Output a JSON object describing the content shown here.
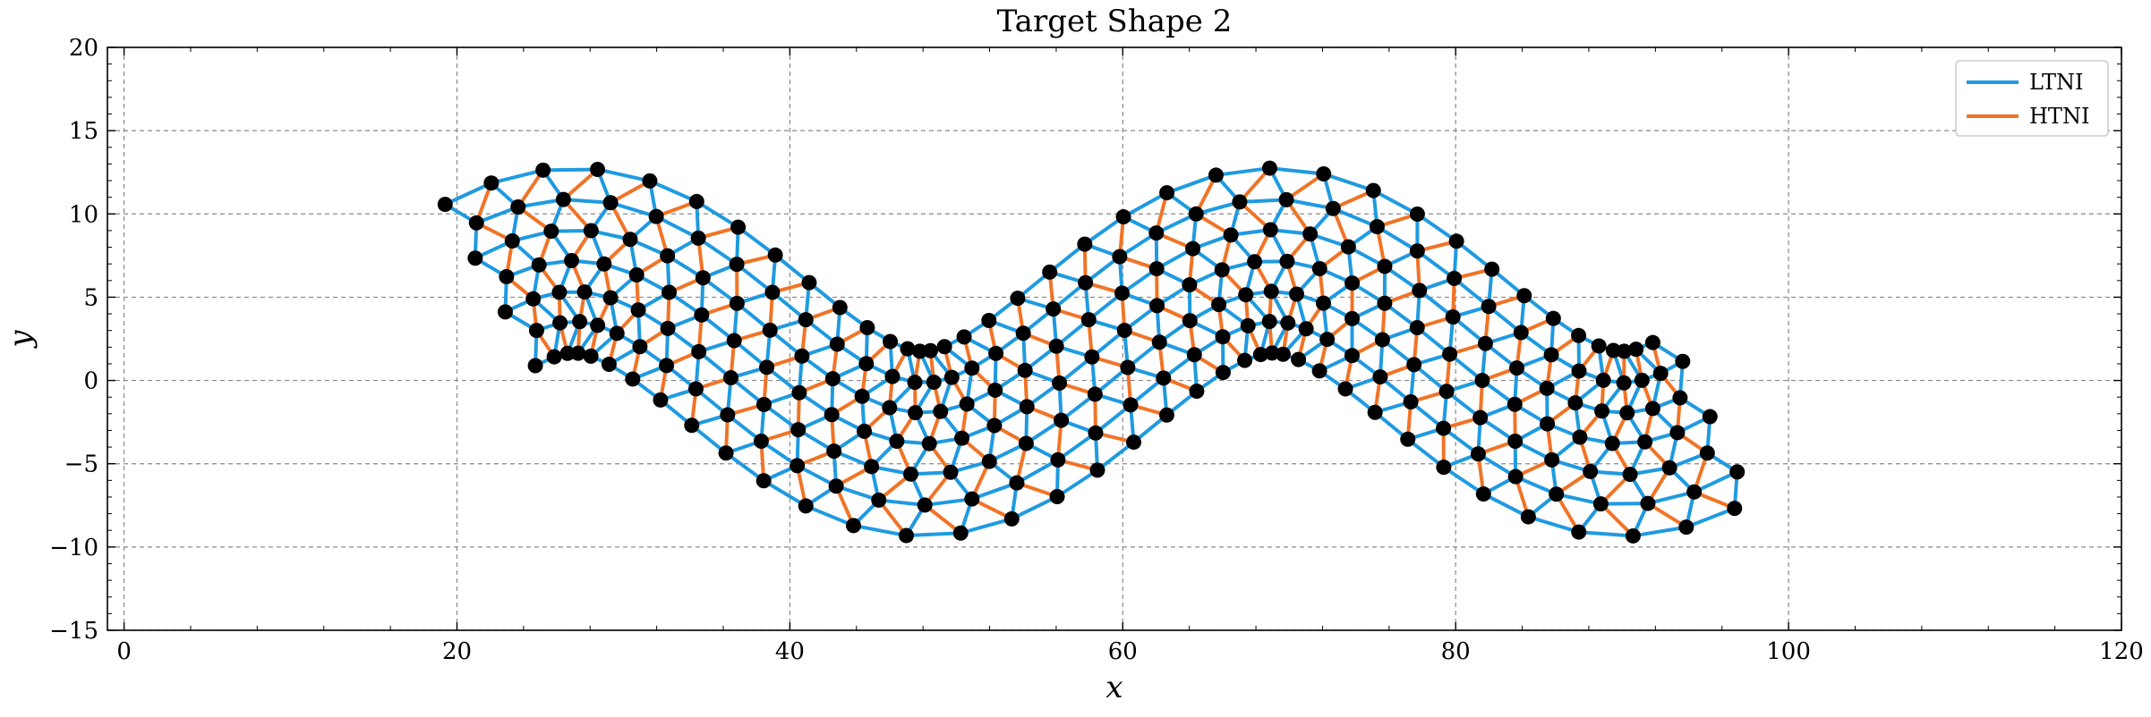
{
  "chart_data": {
    "type": "network",
    "title": "Target Shape 2",
    "xlabel": "x",
    "ylabel": "y",
    "xlim": [
      -1,
      120
    ],
    "ylim": [
      -15,
      20
    ],
    "xticks": [
      0,
      20,
      40,
      60,
      80,
      100,
      120
    ],
    "yticks": [
      -15,
      -10,
      -5,
      0,
      5,
      10,
      15,
      20
    ],
    "xtick_labels": [
      "0",
      "20",
      "40",
      "60",
      "80",
      "100",
      "120"
    ],
    "ytick_labels": [
      "−15",
      "−10",
      "−5",
      "0",
      "5",
      "10",
      "15",
      "20"
    ],
    "grid": true,
    "legend_position": "top-right",
    "colors": {
      "LTNI": "#1f9ae0",
      "HTNI": "#f07427",
      "node": "#000000"
    },
    "series": [
      {
        "name": "LTNI",
        "role": "links along rows and between rows"
      },
      {
        "name": "HTNI",
        "role": "cross-diagonal links"
      }
    ],
    "lattice": {
      "rows": 7,
      "nodes_per_row": 38,
      "row_spacing": 1.85,
      "center_row_y_offset": 1.7,
      "wave": {
        "x_start": 22.0,
        "x_end": 94.3,
        "amplitude": 5.5,
        "period": 42.0,
        "phase_x": 16.5
      }
    }
  }
}
